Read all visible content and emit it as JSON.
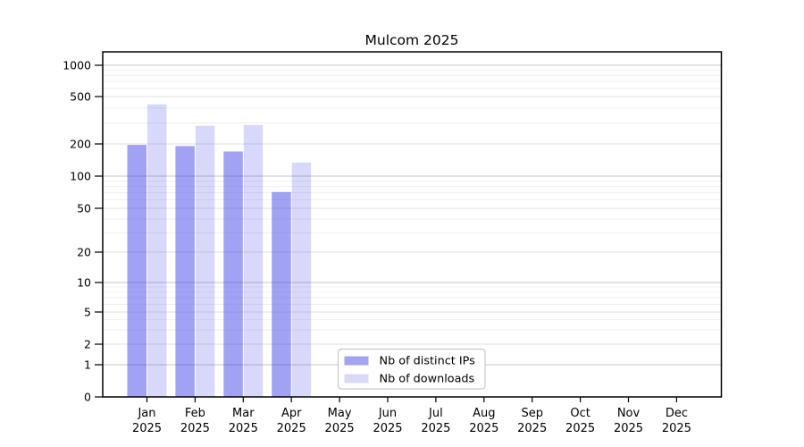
{
  "chart_data": {
    "type": "bar",
    "title": "Mulcom 2025",
    "months": [
      "Jan",
      "Feb",
      "Mar",
      "Apr",
      "May",
      "Jun",
      "Jul",
      "Aug",
      "Sep",
      "Oct",
      "Nov",
      "Dec"
    ],
    "year": "2025",
    "y_ticks": [
      0,
      1,
      2,
      5,
      10,
      20,
      50,
      100,
      200,
      500,
      1000
    ],
    "y_scale": "symlog",
    "ylim": [
      0,
      1300
    ],
    "grid": "horizontal",
    "legend_position": "inside-bottom-center",
    "series": [
      {
        "name": "Nb of distinct IPs",
        "color": "#a3a3f0",
        "values": [
          196,
          191,
          170,
          71,
          null,
          null,
          null,
          null,
          null,
          null,
          null,
          null
        ]
      },
      {
        "name": "Nb of downloads",
        "color": "#d9d9f7",
        "values": [
          430,
          284,
          289,
          134,
          null,
          null,
          null,
          null,
          null,
          null,
          null,
          null
        ]
      }
    ]
  }
}
